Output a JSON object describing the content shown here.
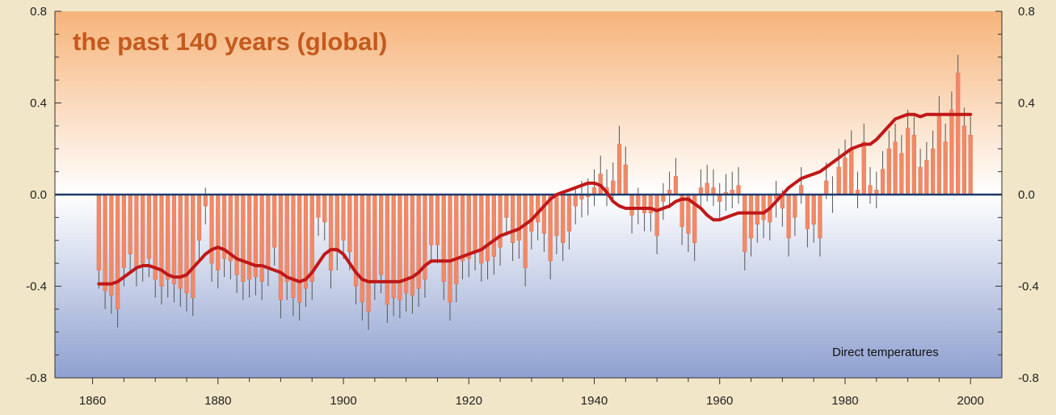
{
  "chart_data": {
    "type": "bar",
    "title": "the past 140 years (global)",
    "annotation": "Direct temperatures",
    "xlabel": "",
    "ylabel": "",
    "xlim": [
      1854,
      2005
    ],
    "ylim": [
      -0.8,
      0.8
    ],
    "x_ticks": [
      1860,
      1880,
      1900,
      1920,
      1940,
      1960,
      1980,
      2000
    ],
    "y_ticks": [
      0.8,
      0.4,
      0.0,
      -0.4,
      -0.8
    ],
    "y_tick_labels": [
      "0.8",
      "0.4",
      "0.0",
      "-0.4",
      "-0.8"
    ],
    "grid": false,
    "colors": {
      "bars": "#f08a68",
      "bar_edge": "#e06a48",
      "smooth": "#c01818",
      "zero_line": "#1a3a6e",
      "error": "#555555",
      "title": "#c45a1e",
      "bg_top": "#f6b47a",
      "bg_mid": "#ffffff",
      "bg_bottom": "#8ea0d0",
      "frame": "#f2e6c8"
    },
    "years": [
      1861,
      1862,
      1863,
      1864,
      1865,
      1866,
      1867,
      1868,
      1869,
      1870,
      1871,
      1872,
      1873,
      1874,
      1875,
      1876,
      1877,
      1878,
      1879,
      1880,
      1881,
      1882,
      1883,
      1884,
      1885,
      1886,
      1887,
      1888,
      1889,
      1890,
      1891,
      1892,
      1893,
      1894,
      1895,
      1896,
      1897,
      1898,
      1899,
      1900,
      1901,
      1902,
      1903,
      1904,
      1905,
      1906,
      1907,
      1908,
      1909,
      1910,
      1911,
      1912,
      1913,
      1914,
      1915,
      1916,
      1917,
      1918,
      1919,
      1920,
      1921,
      1922,
      1923,
      1924,
      1925,
      1926,
      1927,
      1928,
      1929,
      1930,
      1931,
      1932,
      1933,
      1934,
      1935,
      1936,
      1937,
      1938,
      1939,
      1940,
      1941,
      1942,
      1943,
      1944,
      1945,
      1946,
      1947,
      1948,
      1949,
      1950,
      1951,
      1952,
      1953,
      1954,
      1955,
      1956,
      1957,
      1958,
      1959,
      1960,
      1961,
      1962,
      1963,
      1964,
      1965,
      1966,
      1967,
      1968,
      1969,
      1970,
      1971,
      1972,
      1973,
      1974,
      1975,
      1976,
      1977,
      1978,
      1979,
      1980,
      1981,
      1982,
      1983,
      1984,
      1985,
      1986,
      1987,
      1988,
      1989,
      1990,
      1991,
      1992,
      1993,
      1994,
      1995,
      1996,
      1997,
      1998,
      1999,
      2000
    ],
    "anomaly": [
      -0.33,
      -0.42,
      -0.44,
      -0.5,
      -0.32,
      -0.26,
      -0.32,
      -0.3,
      -0.28,
      -0.37,
      -0.4,
      -0.37,
      -0.39,
      -0.41,
      -0.43,
      -0.45,
      -0.2,
      -0.05,
      -0.3,
      -0.33,
      -0.28,
      -0.29,
      -0.35,
      -0.38,
      -0.37,
      -0.36,
      -0.38,
      -0.32,
      -0.23,
      -0.46,
      -0.38,
      -0.45,
      -0.47,
      -0.41,
      -0.38,
      -0.1,
      -0.12,
      -0.33,
      -0.25,
      -0.2,
      -0.25,
      -0.4,
      -0.47,
      -0.51,
      -0.38,
      -0.35,
      -0.48,
      -0.45,
      -0.46,
      -0.43,
      -0.44,
      -0.41,
      -0.37,
      -0.22,
      -0.22,
      -0.38,
      -0.47,
      -0.39,
      -0.29,
      -0.28,
      -0.25,
      -0.3,
      -0.29,
      -0.27,
      -0.23,
      -0.1,
      -0.21,
      -0.2,
      -0.32,
      -0.16,
      -0.12,
      -0.17,
      -0.29,
      -0.18,
      -0.21,
      -0.16,
      -0.05,
      -0.02,
      -0.01,
      0.03,
      0.09,
      0.03,
      0.06,
      0.22,
      0.13,
      -0.09,
      -0.05,
      -0.08,
      -0.08,
      -0.18,
      -0.03,
      0.02,
      0.08,
      -0.14,
      -0.17,
      -0.21,
      0.03,
      0.05,
      0.03,
      -0.03,
      0.01,
      0.02,
      0.04,
      -0.25,
      -0.19,
      -0.13,
      -0.11,
      -0.12,
      -0.02,
      -0.06,
      -0.19,
      -0.1,
      0.04,
      -0.15,
      -0.13,
      -0.19,
      0.06,
      0.0,
      0.12,
      0.16,
      0.2,
      0.02,
      0.23,
      0.04,
      0.02,
      0.11,
      0.2,
      0.23,
      0.18,
      0.29,
      0.26,
      0.12,
      0.15,
      0.2,
      0.35,
      0.23,
      0.37,
      0.53,
      0.3,
      0.26
    ],
    "smoothed": [
      -0.39,
      -0.39,
      -0.39,
      -0.38,
      -0.36,
      -0.34,
      -0.32,
      -0.31,
      -0.31,
      -0.32,
      -0.33,
      -0.35,
      -0.36,
      -0.36,
      -0.35,
      -0.32,
      -0.29,
      -0.26,
      -0.24,
      -0.23,
      -0.24,
      -0.26,
      -0.28,
      -0.29,
      -0.3,
      -0.31,
      -0.31,
      -0.32,
      -0.33,
      -0.34,
      -0.36,
      -0.37,
      -0.38,
      -0.37,
      -0.34,
      -0.3,
      -0.26,
      -0.24,
      -0.24,
      -0.26,
      -0.3,
      -0.34,
      -0.37,
      -0.38,
      -0.38,
      -0.38,
      -0.38,
      -0.38,
      -0.38,
      -0.37,
      -0.36,
      -0.34,
      -0.31,
      -0.29,
      -0.29,
      -0.29,
      -0.29,
      -0.28,
      -0.27,
      -0.26,
      -0.25,
      -0.24,
      -0.22,
      -0.2,
      -0.18,
      -0.17,
      -0.16,
      -0.15,
      -0.13,
      -0.11,
      -0.08,
      -0.05,
      -0.02,
      0.0,
      0.01,
      0.02,
      0.03,
      0.04,
      0.05,
      0.05,
      0.04,
      0.01,
      -0.03,
      -0.05,
      -0.06,
      -0.06,
      -0.06,
      -0.06,
      -0.06,
      -0.07,
      -0.06,
      -0.05,
      -0.03,
      -0.02,
      -0.02,
      -0.04,
      -0.06,
      -0.09,
      -0.11,
      -0.11,
      -0.1,
      -0.09,
      -0.08,
      -0.08,
      -0.08,
      -0.08,
      -0.08,
      -0.06,
      -0.03,
      0.0,
      0.03,
      0.05,
      0.07,
      0.08,
      0.09,
      0.1,
      0.12,
      0.14,
      0.16,
      0.18,
      0.2,
      0.21,
      0.22,
      0.22,
      0.24,
      0.27,
      0.3,
      0.33,
      0.34,
      0.35,
      0.35,
      0.34,
      0.35,
      0.35,
      0.35,
      0.35,
      0.35,
      0.35,
      0.35,
      0.35
    ]
  }
}
